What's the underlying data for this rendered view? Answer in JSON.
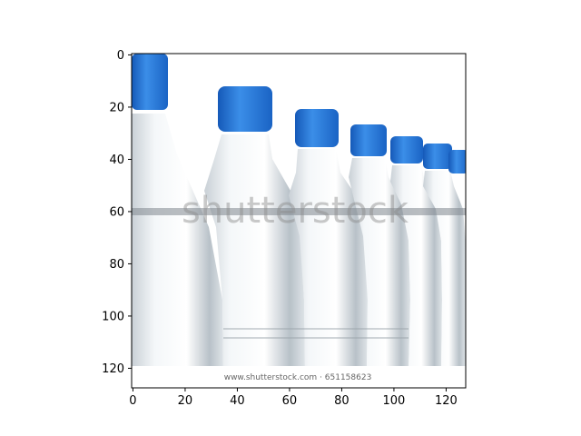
{
  "figure": {
    "image_subject": "row of plastic water bottles with blue caps",
    "watermark_text": "shutterstock",
    "footer_text": "www.shutterstock.com · 651158623",
    "colors": {
      "cap_blue": "#1e73d6",
      "cap_light": "#5aa6f0",
      "bottle_shadow": "#8f979e",
      "background": "#ffffff"
    }
  },
  "chart_data": {
    "type": "image",
    "x_ticks": [
      "0",
      "20",
      "40",
      "60",
      "80",
      "100",
      "120"
    ],
    "y_ticks": [
      "0",
      "20",
      "40",
      "60",
      "80",
      "100",
      "120"
    ],
    "xlim": [
      -0.5,
      127.5
    ],
    "ylim": [
      127.5,
      -0.5
    ],
    "grid": false
  }
}
